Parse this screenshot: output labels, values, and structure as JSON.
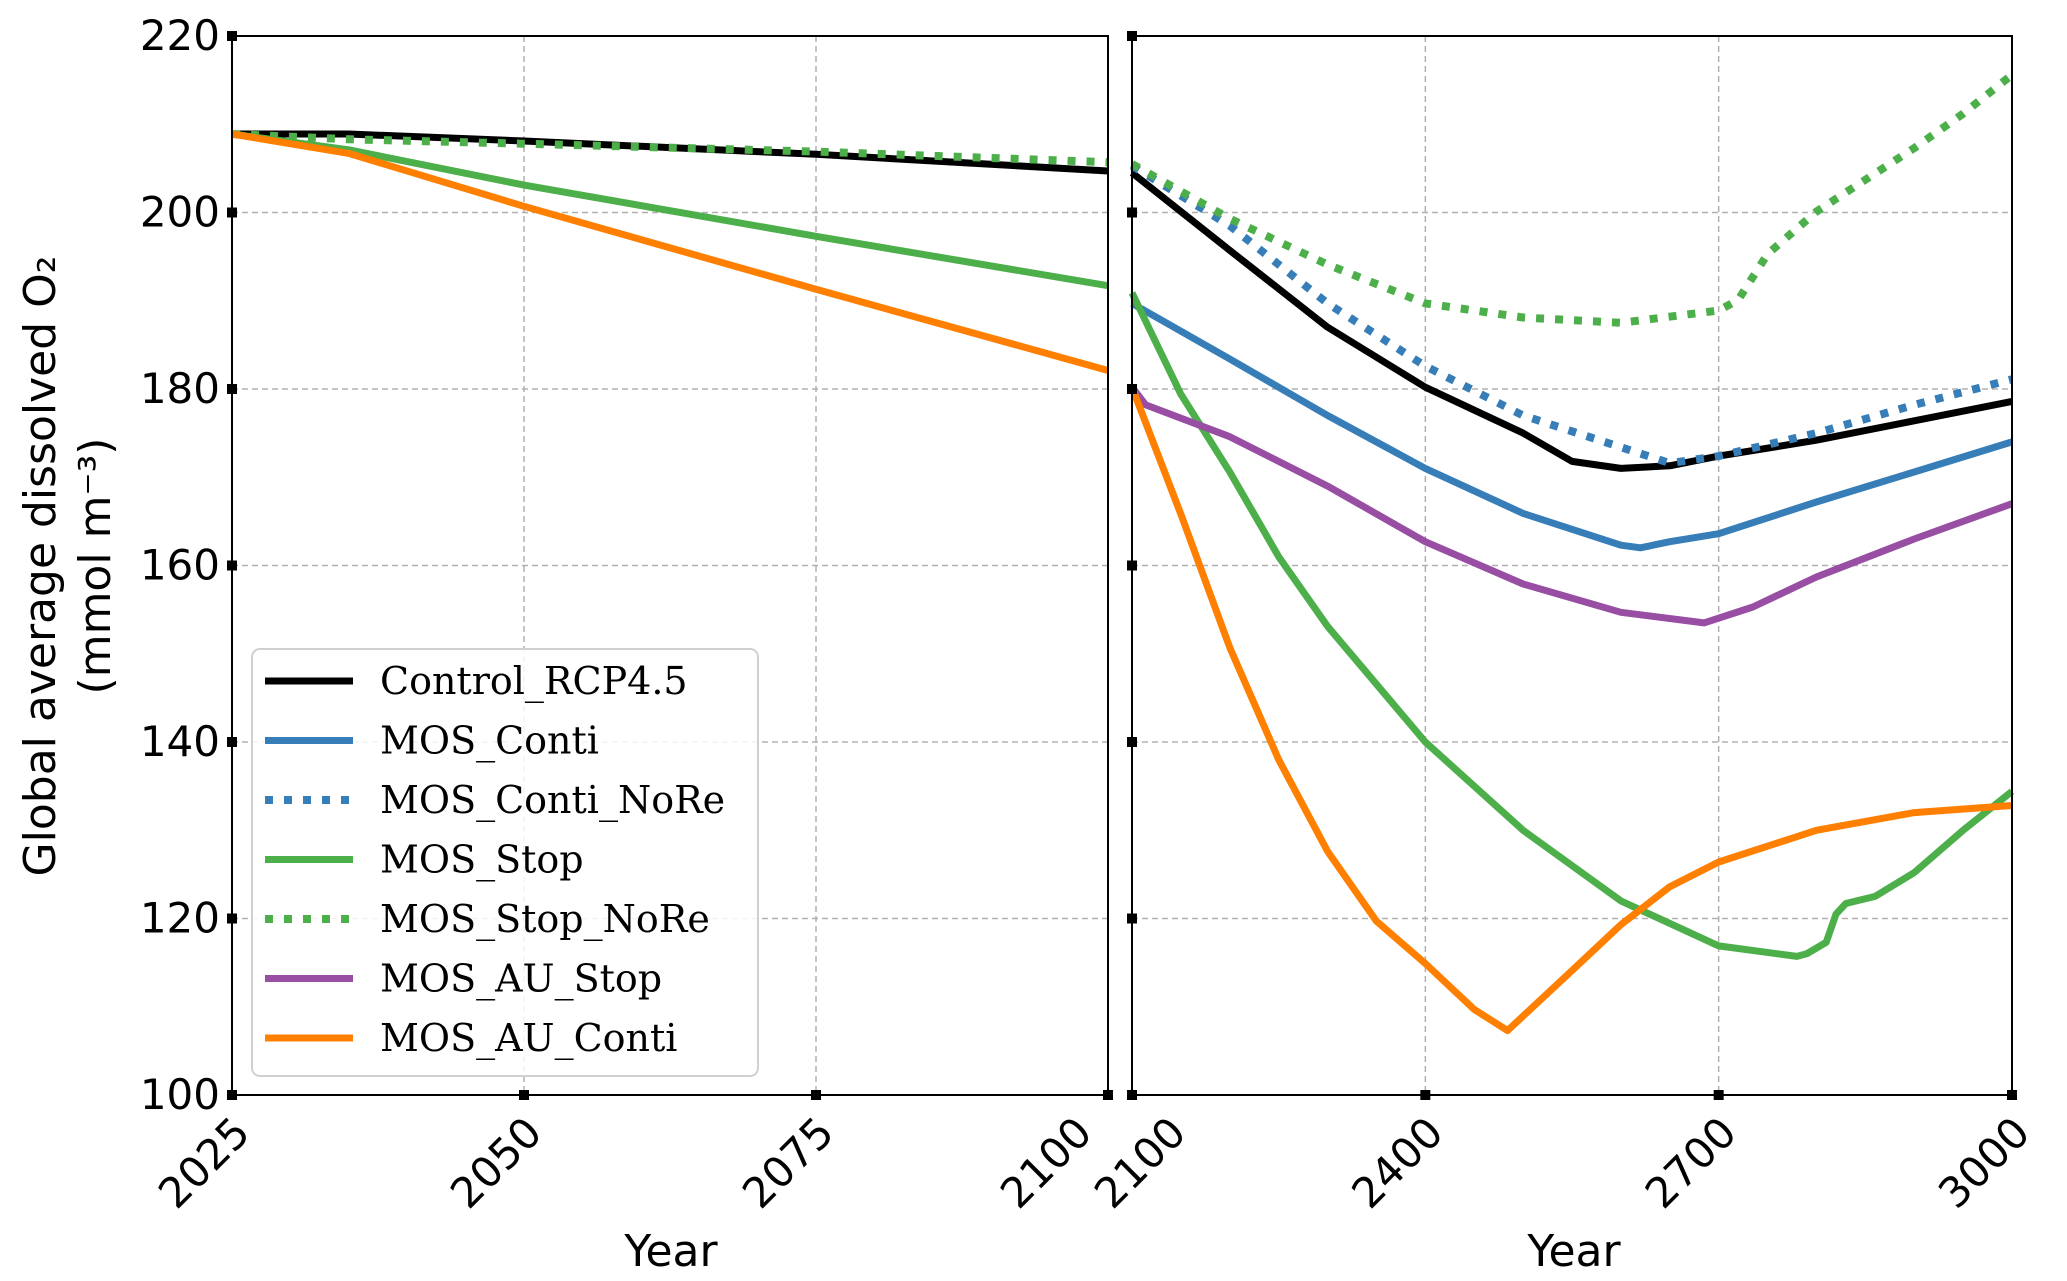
{
  "chart_data": [
    {
      "type": "line",
      "panel": "left",
      "xlabel": "Year",
      "ylabel": "Global average dissolved O₂",
      "ylabel_units": "(mmol m⁻³)",
      "xlim": [
        2025,
        2100
      ],
      "ylim": [
        100,
        220
      ],
      "xticks": [
        "2025",
        "2050",
        "2075",
        "2100"
      ],
      "yticks": [
        "100",
        "120",
        "140",
        "160",
        "180",
        "200",
        "220"
      ],
      "grid": true,
      "legend_placement": "lower-left",
      "series": [
        {
          "name": "Control_RCP4.5",
          "color": "#000000",
          "style": "solid",
          "x": [
            2025,
            2035,
            2050,
            2075,
            2100
          ],
          "y": [
            208.9,
            208.9,
            208.1,
            206.6,
            204.7
          ]
        },
        {
          "name": "MOS_Stop",
          "color": "#4daf4a",
          "style": "solid",
          "x": [
            2025,
            2035,
            2050,
            2075,
            2100
          ],
          "y": [
            208.9,
            207.1,
            203.1,
            197.3,
            191.7
          ]
        },
        {
          "name": "MOS_Stop_NoRe",
          "color": "#4daf4a",
          "style": "dotted",
          "x": [
            2025,
            2035,
            2050,
            2075,
            2100
          ],
          "y": [
            208.9,
            208.3,
            207.8,
            206.9,
            205.7
          ]
        },
        {
          "name": "MOS_AU_Conti",
          "color": "#ff7f00",
          "style": "solid",
          "x": [
            2025,
            2035,
            2050,
            2075,
            2100
          ],
          "y": [
            208.9,
            206.7,
            200.7,
            191.3,
            182.1
          ]
        }
      ]
    },
    {
      "type": "line",
      "panel": "right",
      "xlabel": "Year",
      "xlim": [
        2100,
        3000
      ],
      "ylim": [
        100,
        220
      ],
      "xticks": [
        "2100",
        "2400",
        "2700",
        "3000"
      ],
      "grid": true,
      "series": [
        {
          "name": "Control_RCP4.5",
          "color": "#000000",
          "style": "solid",
          "x": [
            2100,
            2200,
            2300,
            2400,
            2500,
            2550,
            2600,
            2650,
            2700,
            2800,
            2900,
            3000
          ],
          "y": [
            204.5,
            195.7,
            187.0,
            180.2,
            175.0,
            171.8,
            171.0,
            171.3,
            172.4,
            174.2,
            176.4,
            178.6
          ]
        },
        {
          "name": "MOS_Conti",
          "color": "#377eb8",
          "style": "solid",
          "x": [
            2100,
            2200,
            2300,
            2400,
            2500,
            2600,
            2620,
            2650,
            2700,
            2800,
            2900,
            3000
          ],
          "y": [
            189.7,
            183.4,
            177.0,
            171.0,
            165.9,
            162.3,
            162.0,
            162.7,
            163.6,
            167.2,
            170.6,
            174.0
          ]
        },
        {
          "name": "MOS_Conti_NoRe",
          "color": "#377eb8",
          "style": "dotted",
          "x": [
            2100,
            2200,
            2300,
            2400,
            2500,
            2600,
            2650,
            2700,
            2800,
            2900,
            3000
          ],
          "y": [
            205.3,
            198.5,
            189.7,
            182.6,
            177.0,
            173.4,
            171.6,
            172.4,
            175.0,
            178.2,
            181.1
          ]
        },
        {
          "name": "MOS_Stop",
          "color": "#4daf4a",
          "style": "solid",
          "x": [
            2100,
            2150,
            2200,
            2250,
            2300,
            2400,
            2500,
            2600,
            2700,
            2780,
            2790,
            2810,
            2820,
            2830,
            2860,
            2900,
            2950,
            3000
          ],
          "y": [
            190.9,
            179.4,
            170.6,
            161.0,
            153.1,
            140.0,
            130.0,
            122.0,
            116.9,
            115.7,
            116.0,
            117.3,
            120.5,
            121.7,
            122.5,
            125.2,
            130.0,
            134.4
          ]
        },
        {
          "name": "MOS_Stop_NoRe",
          "color": "#4daf4a",
          "style": "dotted",
          "x": [
            2100,
            2200,
            2300,
            2400,
            2500,
            2600,
            2700,
            2720,
            2750,
            2800,
            2850,
            2900,
            2950,
            3000
          ],
          "y": [
            205.5,
            199.3,
            194.1,
            189.7,
            188.1,
            187.5,
            188.9,
            190.1,
            195.3,
            200.1,
            203.7,
            207.3,
            211.2,
            215.6
          ]
        },
        {
          "name": "MOS_AU_Stop",
          "color": "#984ea3",
          "style": "solid",
          "x": [
            2100,
            2114,
            2200,
            2300,
            2400,
            2500,
            2600,
            2685,
            2735,
            2800,
            2900,
            3000
          ],
          "y": [
            180.2,
            178.2,
            174.6,
            169.0,
            162.7,
            157.9,
            154.7,
            153.5,
            155.3,
            158.7,
            163.0,
            167.0
          ]
        },
        {
          "name": "MOS_AU_Conti",
          "color": "#ff7f00",
          "style": "solid",
          "x": [
            2100,
            2150,
            2200,
            2250,
            2300,
            2350,
            2400,
            2450,
            2484,
            2550,
            2600,
            2650,
            2700,
            2800,
            2900,
            3000
          ],
          "y": [
            180.2,
            165.8,
            150.7,
            138.0,
            127.6,
            119.7,
            114.9,
            109.7,
            107.3,
            114.1,
            119.3,
            123.6,
            126.4,
            130.0,
            132.0,
            132.8
          ]
        }
      ]
    }
  ],
  "legend": [
    {
      "label": "Control_RCP4.5",
      "color": "#000000",
      "style": "solid"
    },
    {
      "label": "MOS_Conti",
      "color": "#377eb8",
      "style": "solid"
    },
    {
      "label": "MOS_Conti_NoRe",
      "color": "#377eb8",
      "style": "dotted"
    },
    {
      "label": "MOS_Stop",
      "color": "#4daf4a",
      "style": "solid"
    },
    {
      "label": "MOS_Stop_NoRe",
      "color": "#4daf4a",
      "style": "dotted"
    },
    {
      "label": "MOS_AU_Stop",
      "color": "#984ea3",
      "style": "solid"
    },
    {
      "label": "MOS_AU_Conti",
      "color": "#ff7f00",
      "style": "solid"
    }
  ]
}
